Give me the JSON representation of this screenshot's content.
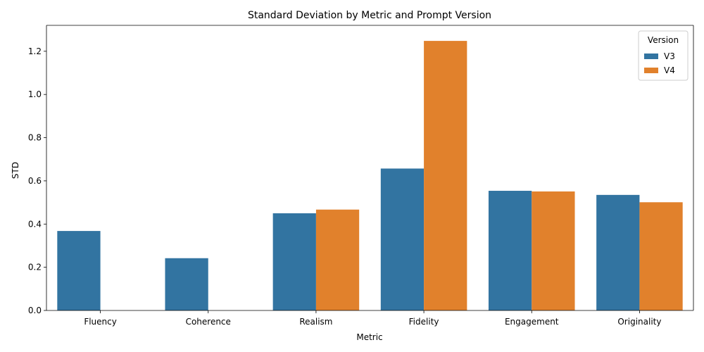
{
  "chart_data": {
    "type": "bar",
    "title": "Standard Deviation by Metric and Prompt Version",
    "xlabel": "Metric",
    "ylabel": "STD",
    "categories": [
      "Fluency",
      "Coherence",
      "Realism",
      "Fidelity",
      "Engagement",
      "Originality"
    ],
    "series": [
      {
        "name": "V3",
        "color": "#3274a1",
        "values": [
          0.368,
          0.242,
          0.45,
          0.657,
          0.554,
          0.535
        ]
      },
      {
        "name": "V4",
        "color": "#e1812c",
        "values": [
          0.0,
          0.0,
          0.467,
          1.248,
          0.551,
          0.501
        ]
      }
    ],
    "ylim": [
      0,
      1.32
    ],
    "yticks": [
      0.0,
      0.2,
      0.4,
      0.6,
      0.8,
      1.0,
      1.2
    ],
    "ytick_labels": [
      "0.0",
      "0.2",
      "0.4",
      "0.6",
      "0.8",
      "1.0",
      "1.2"
    ],
    "legend": {
      "title": "Version",
      "placement": "top-right"
    },
    "grid": false
  }
}
